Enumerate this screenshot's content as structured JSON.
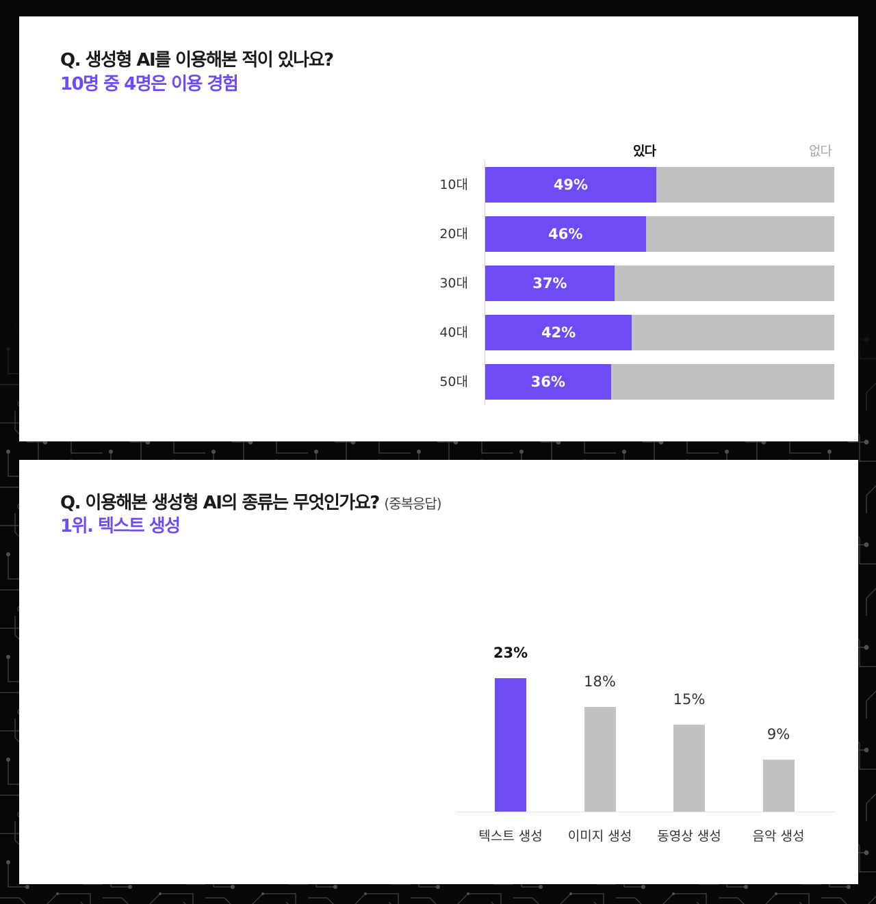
{
  "colors": {
    "accent": "#6f4bf6",
    "bar_inactive": "#c2c2c2",
    "text_primary": "#1a1a1a",
    "text_muted": "#a9a9a9",
    "page_background": "#070707",
    "card_background": "#ffffff"
  },
  "chart_data": [
    {
      "type": "bar",
      "orientation": "horizontal",
      "stacked": true,
      "title": "Q. 생성형 AI를 이용해본 적이 있나요?",
      "subtitle": "10명 중 4명은 이용 경험",
      "categories": [
        "10대",
        "20대",
        "30대",
        "40대",
        "50대"
      ],
      "series": [
        {
          "name": "있다",
          "values": [
            49,
            46,
            37,
            42,
            36
          ],
          "color": "#6f4bf6"
        },
        {
          "name": "없다",
          "values": [
            51,
            54,
            63,
            58,
            64
          ],
          "color": "#c2c2c2"
        }
      ],
      "data_labels": [
        "49%",
        "46%",
        "37%",
        "42%",
        "36%"
      ],
      "xlim": [
        0,
        100
      ],
      "legend_position": "top",
      "grid": false
    },
    {
      "type": "bar",
      "orientation": "vertical",
      "title": "Q. 이용해본 생성형 AI의 종류는 무엇인가요?",
      "title_note": "(중복응답)",
      "subtitle": "1위. 텍스트 생성",
      "categories": [
        "텍스트 생성",
        "이미지 생성",
        "동영상 생성",
        "음악 생성"
      ],
      "values": [
        23,
        18,
        15,
        9
      ],
      "data_labels": [
        "23%",
        "18%",
        "15%",
        "9%"
      ],
      "highlight_index": 0,
      "highlight_color": "#6f4bf6",
      "bar_color": "#c2c2c2",
      "ylim": [
        0,
        25
      ],
      "grid": false
    }
  ]
}
